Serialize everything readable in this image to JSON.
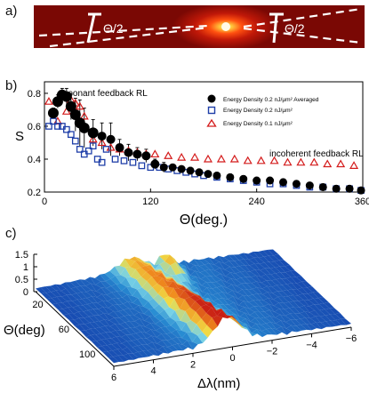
{
  "panels": {
    "a": "a)",
    "b": "b)",
    "c": "c)"
  },
  "photo": {
    "angle_left": "Θ/2",
    "angle_right": "Θ/2"
  },
  "chart_data": [
    {
      "type": "scatter",
      "xlabel": "Θ(deg.)",
      "ylabel": "S",
      "xlim": [
        0,
        360
      ],
      "ylim": [
        0.2,
        0.87
      ],
      "xticks": [
        "0",
        "120",
        "240",
        "360"
      ],
      "yticks": [
        "0.2",
        "0.4",
        "0.6",
        "0.8"
      ],
      "annotations": [
        "resonant feedback RL",
        "incoherent feedback RL"
      ],
      "legend_placement": "top-right",
      "series": [
        {
          "name": "Energy Density 0.2 nJ/μm² Averaged",
          "marker": "filled-circle",
          "color": "#000000",
          "x": [
            10,
            15,
            20,
            25,
            30,
            35,
            40,
            45,
            55,
            65,
            75,
            85,
            95,
            105,
            115,
            125,
            135,
            145,
            155,
            165,
            175,
            185,
            195,
            210,
            225,
            240,
            255,
            270,
            285,
            300,
            315,
            330,
            345,
            358
          ],
          "y": [
            0.68,
            0.75,
            0.79,
            0.78,
            0.72,
            0.67,
            0.62,
            0.59,
            0.56,
            0.54,
            0.52,
            0.47,
            0.44,
            0.43,
            0.42,
            0.37,
            0.35,
            0.35,
            0.34,
            0.33,
            0.32,
            0.31,
            0.3,
            0.29,
            0.28,
            0.27,
            0.27,
            0.26,
            0.25,
            0.24,
            0.23,
            0.22,
            0.22,
            0.21
          ],
          "error": [
            0.03,
            0.04,
            0.04,
            0.05,
            0.08,
            0.1,
            0.14,
            0.12,
            0.08,
            0.08,
            0.1,
            0.05,
            0.05,
            0.04,
            0.04,
            0.03,
            0.03,
            0.02,
            0.02,
            0.02,
            0.02,
            0.02,
            0.02,
            0.02,
            0.02,
            0.02,
            0.02,
            0.02,
            0.02,
            0.02,
            0.02,
            0.02,
            0.02,
            0.02
          ]
        },
        {
          "name": "Energy Density 0.2 nJ/μm²",
          "marker": "open-square",
          "color": "#1f3fa8",
          "x": [
            5,
            10,
            15,
            20,
            25,
            30,
            35,
            40,
            45,
            50,
            55,
            60,
            65,
            70,
            80,
            90,
            100,
            110,
            120,
            130,
            140,
            150,
            160,
            170,
            180,
            195,
            210,
            225,
            240,
            255,
            270,
            285,
            300,
            315,
            330,
            345,
            358
          ],
          "y": [
            0.6,
            0.63,
            0.6,
            0.6,
            0.58,
            0.55,
            0.51,
            0.46,
            0.43,
            0.45,
            0.48,
            0.4,
            0.38,
            0.46,
            0.4,
            0.39,
            0.38,
            0.36,
            0.35,
            0.35,
            0.34,
            0.33,
            0.32,
            0.31,
            0.3,
            0.29,
            0.28,
            0.27,
            0.26,
            0.25,
            0.25,
            0.24,
            0.23,
            0.23,
            0.22,
            0.22,
            0.21
          ]
        },
        {
          "name": "Energy Density 0.1 nJ/μm²",
          "marker": "open-triangle",
          "color": "#d41c1c",
          "x": [
            5,
            10,
            15,
            20,
            25,
            30,
            35,
            40,
            45,
            55,
            65,
            75,
            85,
            95,
            105,
            115,
            125,
            140,
            155,
            170,
            185,
            200,
            215,
            230,
            245,
            260,
            275,
            290,
            305,
            320,
            335,
            350
          ],
          "y": [
            0.75,
            0.68,
            0.63,
            0.78,
            0.69,
            0.76,
            0.74,
            0.72,
            0.66,
            0.52,
            0.5,
            0.47,
            0.46,
            0.45,
            0.44,
            0.43,
            0.43,
            0.42,
            0.41,
            0.41,
            0.4,
            0.4,
            0.4,
            0.39,
            0.39,
            0.39,
            0.38,
            0.38,
            0.38,
            0.37,
            0.37,
            0.36
          ]
        }
      ]
    },
    {
      "type": "surface",
      "xlabel": "Δλ(nm)",
      "ylabel": "Θ(deg)",
      "zlabel": "",
      "xlim": [
        6,
        -6
      ],
      "ylim": [
        0,
        120
      ],
      "zlim": [
        0,
        1.5
      ],
      "xticks": [
        "6",
        "4",
        "2",
        "0",
        "−2",
        "−4",
        "−6"
      ],
      "yticks": [
        "20",
        "60",
        "100"
      ],
      "zticks": [
        "0",
        "0.5",
        "1",
        "1.5"
      ]
    }
  ]
}
